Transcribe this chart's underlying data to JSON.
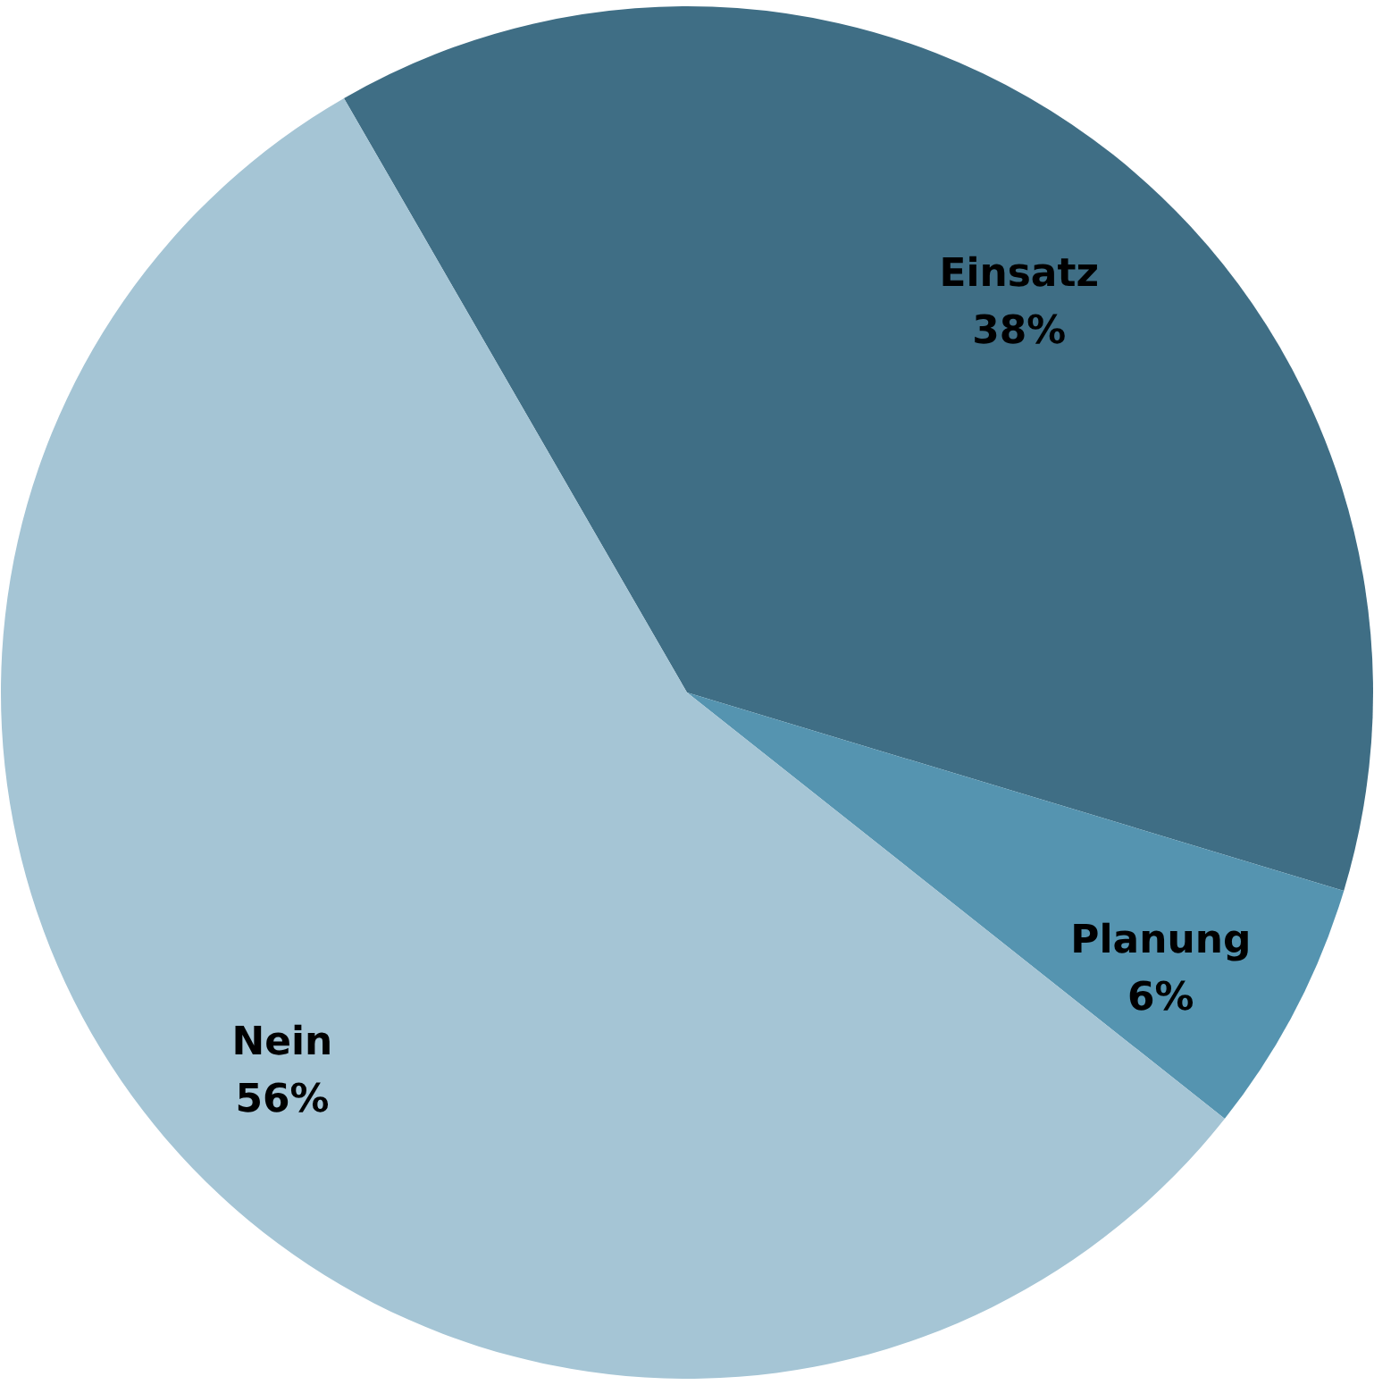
{
  "chart_data": {
    "type": "pie",
    "categories": [
      "Einsatz",
      "Planung",
      "Nein"
    ],
    "values": [
      38,
      6,
      56
    ],
    "value_labels": [
      "38%",
      "6%",
      "56%"
    ],
    "colors": [
      "#3f6e85",
      "#5594b0",
      "#a5c5d5"
    ],
    "legend": false
  }
}
